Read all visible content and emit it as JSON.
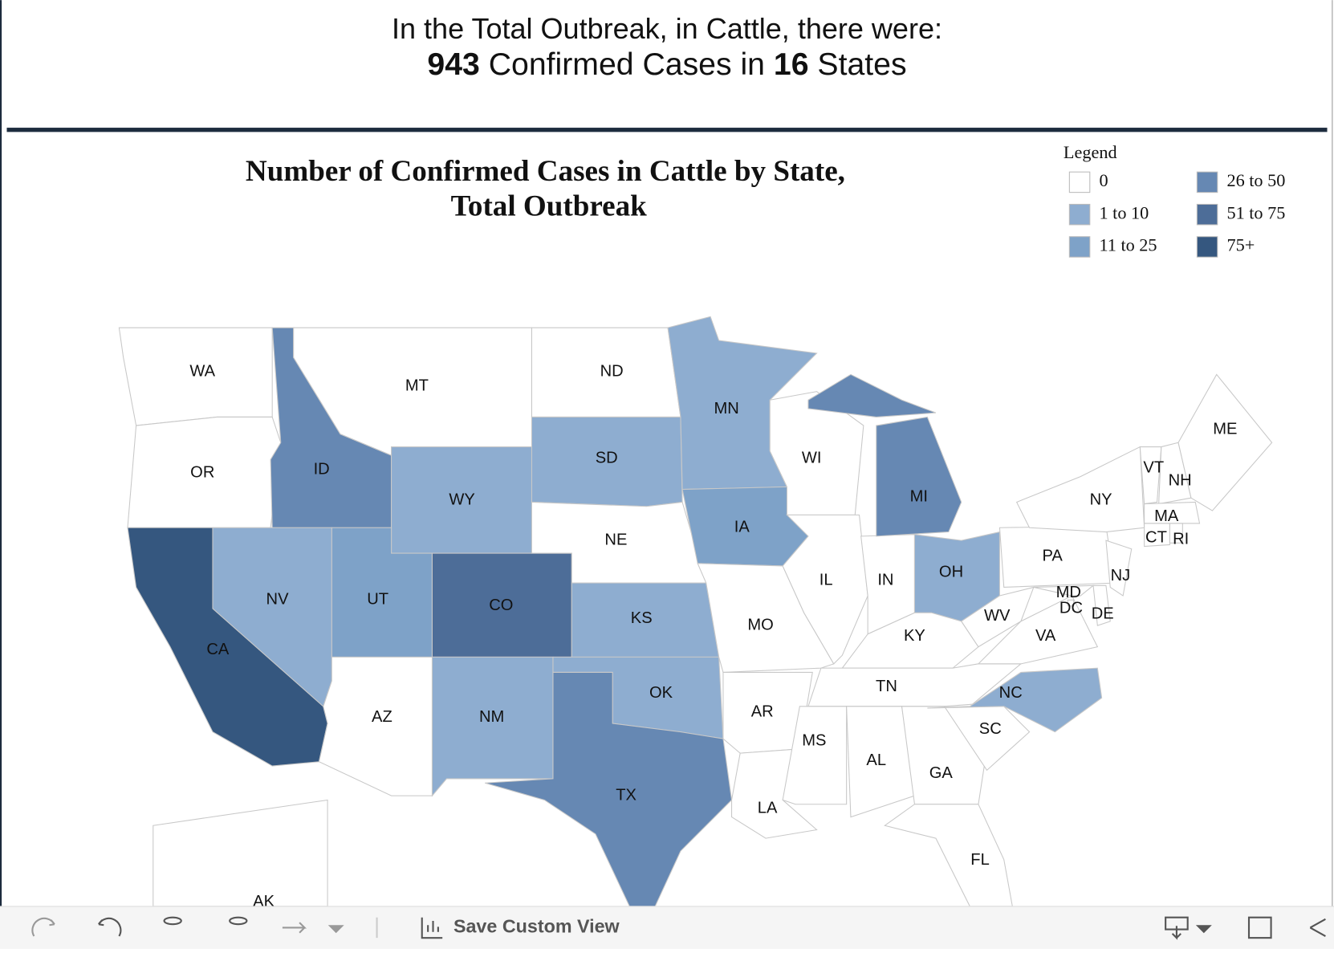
{
  "header": {
    "line1": "In the Total Outbreak, in Cattle, there were:",
    "cases": 943,
    "cases_text": "Confirmed Cases in",
    "states": 16,
    "states_text": "States"
  },
  "map": {
    "title_line1": "Number of Confirmed Cases in Cattle by State,",
    "title_line2": "Total Outbreak",
    "legend": {
      "title": "Legend",
      "items": [
        {
          "label": "0",
          "color": "#ffffff"
        },
        {
          "label": "1 to 10",
          "color": "#8eadd0"
        },
        {
          "label": "11 to 25",
          "color": "#7ea2c8"
        },
        {
          "label": "26 to 50",
          "color": "#6688b3"
        },
        {
          "label": "51 to 75",
          "color": "#4d6d98"
        },
        {
          "label": "75+",
          "color": "#35577f"
        }
      ]
    },
    "states": [
      {
        "label": "WA",
        "color": "#ffffff"
      },
      {
        "label": "OR",
        "color": "#ffffff"
      },
      {
        "label": "CA",
        "color": "#35577f"
      },
      {
        "label": "ID",
        "color": "#6688b3"
      },
      {
        "label": "MT",
        "color": "#ffffff"
      },
      {
        "label": "WY",
        "color": "#8eadd0"
      },
      {
        "label": "NV",
        "color": "#8eadd0"
      },
      {
        "label": "UT",
        "color": "#7ea2c8"
      },
      {
        "label": "AZ",
        "color": "#ffffff"
      },
      {
        "label": "CO",
        "color": "#4d6d98"
      },
      {
        "label": "NM",
        "color": "#8eadd0"
      },
      {
        "label": "ND",
        "color": "#ffffff"
      },
      {
        "label": "SD",
        "color": "#8eadd0"
      },
      {
        "label": "NE",
        "color": "#ffffff"
      },
      {
        "label": "KS",
        "color": "#8eadd0"
      },
      {
        "label": "OK",
        "color": "#8eadd0"
      },
      {
        "label": "TX",
        "color": "#6688b3"
      },
      {
        "label": "MN",
        "color": "#8eadd0"
      },
      {
        "label": "IA",
        "color": "#7ea2c8"
      },
      {
        "label": "MO",
        "color": "#ffffff"
      },
      {
        "label": "AR",
        "color": "#ffffff"
      },
      {
        "label": "LA",
        "color": "#ffffff"
      },
      {
        "label": "WI",
        "color": "#ffffff"
      },
      {
        "label": "IL",
        "color": "#ffffff"
      },
      {
        "label": "IN",
        "color": "#ffffff"
      },
      {
        "label": "MI",
        "color": "#6688b3"
      },
      {
        "label": "OH",
        "color": "#8eadd0"
      },
      {
        "label": "KY",
        "color": "#ffffff"
      },
      {
        "label": "TN",
        "color": "#ffffff"
      },
      {
        "label": "MS",
        "color": "#ffffff"
      },
      {
        "label": "AL",
        "color": "#ffffff"
      },
      {
        "label": "GA",
        "color": "#ffffff"
      },
      {
        "label": "FL",
        "color": "#ffffff"
      },
      {
        "label": "SC",
        "color": "#ffffff"
      },
      {
        "label": "NC",
        "color": "#8eadd0"
      },
      {
        "label": "VA",
        "color": "#ffffff"
      },
      {
        "label": "WV",
        "color": "#ffffff"
      },
      {
        "label": "PA",
        "color": "#ffffff"
      },
      {
        "label": "NY",
        "color": "#ffffff"
      },
      {
        "label": "NJ",
        "color": "#ffffff"
      },
      {
        "label": "MD",
        "color": "#ffffff"
      },
      {
        "label": "DE",
        "color": "#ffffff"
      },
      {
        "label": "DC",
        "color": "#ffffff"
      },
      {
        "label": "VT",
        "color": "#ffffff"
      },
      {
        "label": "NH",
        "color": "#ffffff"
      },
      {
        "label": "ME",
        "color": "#ffffff"
      },
      {
        "label": "MA",
        "color": "#ffffff"
      },
      {
        "label": "CT",
        "color": "#ffffff"
      },
      {
        "label": "RI",
        "color": "#ffffff"
      },
      {
        "label": "AK",
        "color": "#ffffff"
      }
    ]
  },
  "toolbar": {
    "save_label": "Save Custom View"
  }
}
